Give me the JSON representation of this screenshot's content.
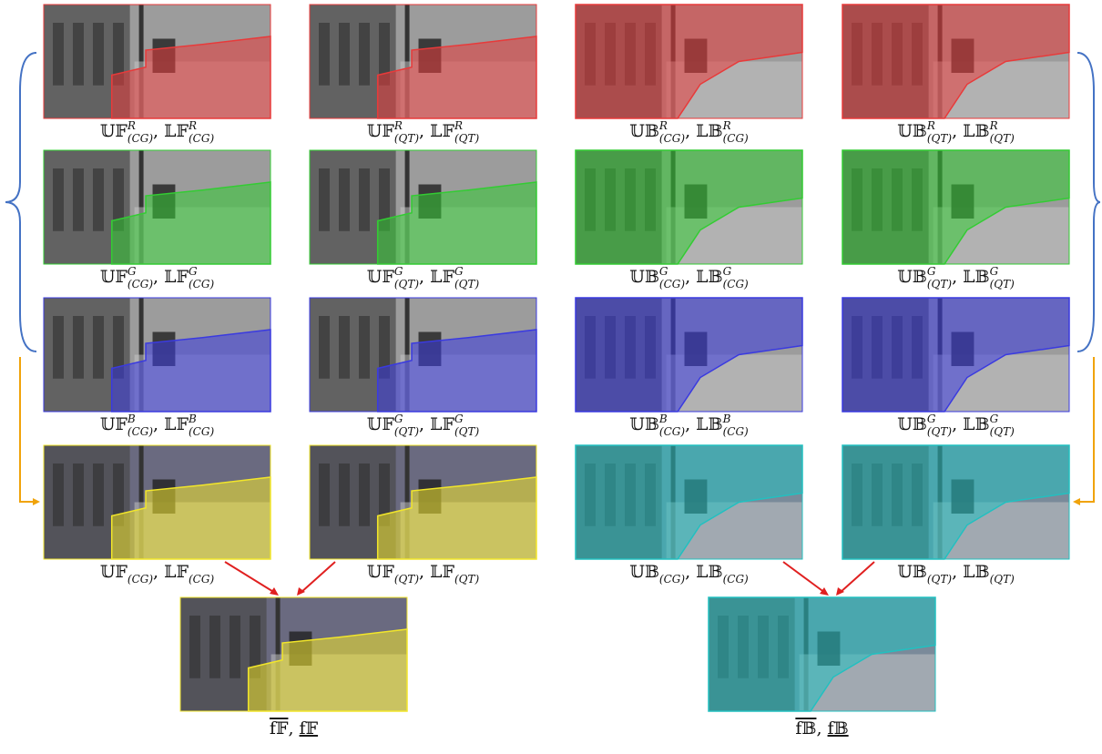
{
  "separator": ", ",
  "panels": [
    {
      "terms": [
        {
          "base": "𝕌𝔽",
          "sup": "R",
          "sub": "(CG)"
        },
        {
          "base": "𝕃𝔽",
          "sup": "R",
          "sub": "(CG)"
        }
      ]
    },
    {
      "terms": [
        {
          "base": "𝕌𝔽",
          "sup": "R",
          "sub": "(QT)"
        },
        {
          "base": "𝕃𝔽",
          "sup": "R",
          "sub": "(QT)"
        }
      ]
    },
    {
      "terms": [
        {
          "base": "𝕌𝔹",
          "sup": "R",
          "sub": "(CG)"
        },
        {
          "base": "𝕃𝔹",
          "sup": "R",
          "sub": "(CG)"
        }
      ]
    },
    {
      "terms": [
        {
          "base": "𝕌𝔹",
          "sup": "R",
          "sub": "(QT)"
        },
        {
          "base": "𝕃𝔹",
          "sup": "R",
          "sub": "(QT)"
        }
      ]
    },
    {
      "terms": [
        {
          "base": "𝕌𝔽",
          "sup": "G",
          "sub": "(CG)"
        },
        {
          "base": "𝕃𝔽",
          "sup": "G",
          "sub": "(CG)"
        }
      ]
    },
    {
      "terms": [
        {
          "base": "𝕌𝔽",
          "sup": "G",
          "sub": "(QT)"
        },
        {
          "base": "𝕃𝔽",
          "sup": "G",
          "sub": "(QT)"
        }
      ]
    },
    {
      "terms": [
        {
          "base": "𝕌𝔹",
          "sup": "G",
          "sub": "(CG)"
        },
        {
          "base": "𝕃𝔹",
          "sup": "G",
          "sub": "(CG)"
        }
      ]
    },
    {
      "terms": [
        {
          "base": "𝕌𝔹",
          "sup": "G",
          "sub": "(QT)"
        },
        {
          "base": "𝕃𝔹",
          "sup": "G",
          "sub": "(QT)"
        }
      ]
    },
    {
      "terms": [
        {
          "base": "𝕌𝔽",
          "sup": "B",
          "sub": "(CG)"
        },
        {
          "base": "𝕃𝔽",
          "sup": "B",
          "sub": "(CG)"
        }
      ]
    },
    {
      "terms": [
        {
          "base": "𝕌𝔽",
          "sup": "G",
          "sub": "(QT)"
        },
        {
          "base": "𝕃𝔽",
          "sup": "G",
          "sub": "(QT)"
        }
      ]
    },
    {
      "terms": [
        {
          "base": "𝕌𝔹",
          "sup": "B",
          "sub": "(CG)"
        },
        {
          "base": "𝕃𝔹",
          "sup": "B",
          "sub": "(CG)"
        }
      ]
    },
    {
      "terms": [
        {
          "base": "𝕌𝔹",
          "sup": "G",
          "sub": "(QT)"
        },
        {
          "base": "𝕃𝔹",
          "sup": "G",
          "sub": "(QT)"
        }
      ]
    },
    {
      "terms": [
        {
          "base": "𝕌𝔽",
          "sub": "(CG)"
        },
        {
          "base": "𝕃𝔽",
          "sub": "(CG)"
        }
      ]
    },
    {
      "terms": [
        {
          "base": "𝕌𝔽",
          "sub": "(QT)"
        },
        {
          "base": "𝕃𝔽",
          "sub": "(QT)"
        }
      ]
    },
    {
      "terms": [
        {
          "base": "𝕌𝔹",
          "sub": "(CG)"
        },
        {
          "base": "𝕃𝔹",
          "sub": "(CG)"
        }
      ]
    },
    {
      "terms": [
        {
          "base": "𝕌𝔹",
          "sub": "(QT)"
        },
        {
          "base": "𝕃𝔹",
          "sub": "(QT)"
        }
      ]
    },
    {
      "terms": [
        {
          "base": "f𝔽"
        },
        {
          "base": "f𝔽"
        }
      ]
    },
    {
      "terms": [
        {
          "base": "f𝔹"
        },
        {
          "base": "f𝔹"
        }
      ]
    }
  ]
}
